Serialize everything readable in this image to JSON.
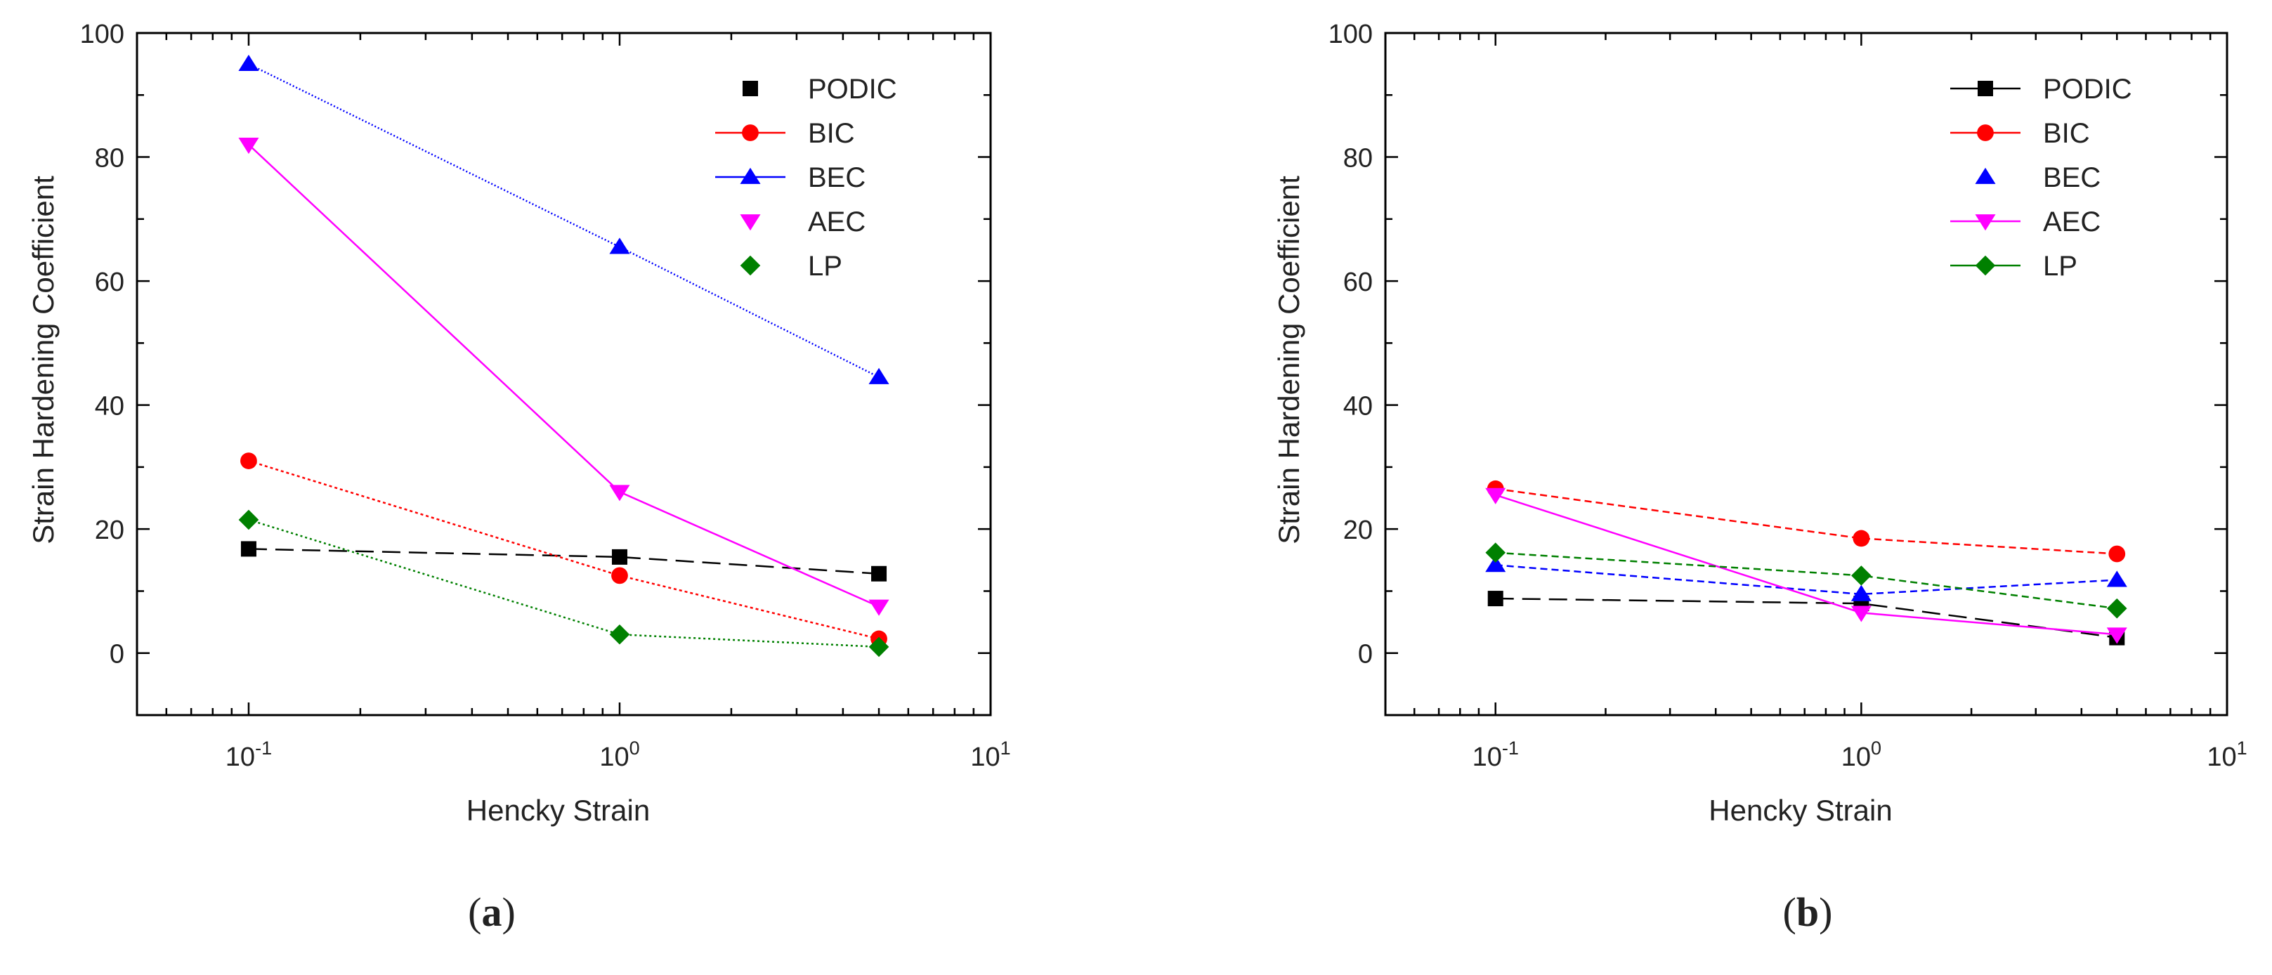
{
  "chart_data": [
    {
      "type": "line",
      "panel_label": "(a)",
      "panel_letter": "a",
      "title": "",
      "xlabel": "Hencky Strain",
      "ylabel": "Strain Hardening Coefficient",
      "xscale": "log",
      "xlim": [
        0.05,
        10
      ],
      "ylim": [
        -10,
        100
      ],
      "xticks": [
        {
          "value": 0.1,
          "base": "10",
          "exp": "-1"
        },
        {
          "value": 1,
          "base": "10",
          "exp": "0"
        },
        {
          "value": 10,
          "base": "10",
          "exp": "1"
        }
      ],
      "yticks": [
        0,
        20,
        40,
        60,
        80,
        100
      ],
      "ytick_labels": [
        "0",
        "20",
        "40",
        "60",
        "80",
        "100"
      ],
      "legend_position": "top-right",
      "x": [
        0.1,
        1,
        5
      ],
      "series": [
        {
          "name": "PODIC",
          "values": [
            16.8,
            15.5,
            12.8
          ],
          "color": "#000000",
          "marker": "square",
          "dash": "26 12",
          "legend_line": false
        },
        {
          "name": "BIC",
          "values": [
            31,
            12.5,
            2.3
          ],
          "color": "#ff0000",
          "marker": "circle",
          "dash": "4 4",
          "legend_line": true
        },
        {
          "name": "BEC",
          "values": [
            95,
            65.5,
            44.5
          ],
          "color": "#0000ff",
          "marker": "triangle-up",
          "dash": "2 3",
          "legend_line": true
        },
        {
          "name": "AEC",
          "values": [
            82,
            26,
            7.5
          ],
          "color": "#ff00ff",
          "marker": "triangle-down",
          "dash": "",
          "legend_line": false
        },
        {
          "name": "LP",
          "values": [
            21.5,
            3,
            1
          ],
          "color": "#008000",
          "marker": "diamond",
          "dash": "3 4",
          "legend_line": false
        }
      ]
    },
    {
      "type": "line",
      "panel_label": "(b)",
      "panel_letter": "b",
      "title": "",
      "xlabel": "Hencky Strain",
      "ylabel": "Strain Hardening Coefficient",
      "xscale": "log",
      "xlim": [
        0.05,
        10
      ],
      "ylim": [
        -10,
        100
      ],
      "xticks": [
        {
          "value": 0.1,
          "base": "10",
          "exp": "-1"
        },
        {
          "value": 1,
          "base": "10",
          "exp": "0"
        },
        {
          "value": 10,
          "base": "10",
          "exp": "1"
        }
      ],
      "yticks": [
        0,
        20,
        40,
        60,
        80,
        100
      ],
      "ytick_labels": [
        "0",
        "20",
        "40",
        "60",
        "80",
        "100"
      ],
      "legend_position": "top-right",
      "x": [
        0.1,
        1,
        5
      ],
      "series": [
        {
          "name": "PODIC",
          "values": [
            8.8,
            8,
            2.5
          ],
          "color": "#000000",
          "marker": "square",
          "dash": "26 12",
          "legend_line": true
        },
        {
          "name": "BIC",
          "values": [
            26.5,
            18.5,
            16
          ],
          "color": "#ff0000",
          "marker": "circle",
          "dash": "10 6",
          "legend_line": true
        },
        {
          "name": "BEC",
          "values": [
            14.2,
            9.5,
            11.8
          ],
          "color": "#0000ff",
          "marker": "triangle-up",
          "dash": "10 6",
          "legend_line": false
        },
        {
          "name": "AEC",
          "values": [
            25.5,
            6.5,
            3
          ],
          "color": "#ff00ff",
          "marker": "triangle-down",
          "dash": "",
          "legend_line": true
        },
        {
          "name": "LP",
          "values": [
            16.2,
            12.5,
            7.2
          ],
          "color": "#008000",
          "marker": "diamond",
          "dash": "10 6",
          "legend_line": true
        }
      ]
    }
  ]
}
